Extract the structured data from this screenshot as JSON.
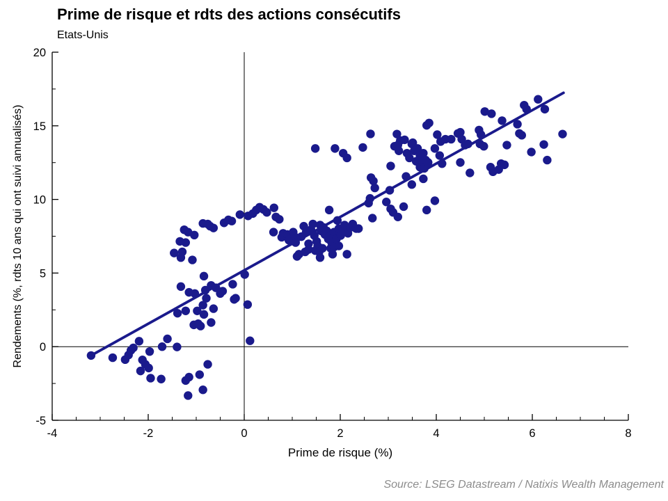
{
  "title": "Prime de risque et rdts des actions consécutifs",
  "subtitle": "Etats-Unis",
  "source": "Source: LSEG Datastream / Natixis Wealth Management",
  "colors": {
    "dot": "#1a1a8c",
    "trendline": "#1a1a8c",
    "axis": "#000000",
    "source_text": "#8c8c8c"
  },
  "chart_data": {
    "type": "scatter",
    "title": "Prime de risque et rdts des actions consécutifs",
    "subtitle": "Etats-Unis",
    "xlabel": "Prime de risque (%)",
    "ylabel": "Rendements (%, rdts 10 ans qui ont suivi annualisés)",
    "xlim": [
      -4,
      8
    ],
    "ylim": [
      -5,
      20
    ],
    "xticks": [
      -4,
      -2,
      0,
      2,
      4,
      6,
      8
    ],
    "yticks": [
      -5,
      0,
      5,
      10,
      15,
      20
    ],
    "x_minor_step": 0.5,
    "y_minor_step": 2.5,
    "grid": false,
    "zero_lines": true,
    "legend": "none",
    "trendline": {
      "x1": -3.19,
      "y1": -0.6,
      "x2": 6.65,
      "y2": 17.24
    },
    "points": [
      [
        -3.19,
        -0.6
      ],
      [
        -2.74,
        -0.75
      ],
      [
        -2.48,
        -0.88
      ],
      [
        -2.41,
        -0.57
      ],
      [
        -2.36,
        -0.25
      ],
      [
        -2.31,
        -0.08
      ],
      [
        -2.19,
        0.37
      ],
      [
        -2.12,
        -0.9
      ],
      [
        -2.06,
        -1.2
      ],
      [
        -2.16,
        -1.65
      ],
      [
        -1.99,
        -1.45
      ],
      [
        -1.97,
        -0.33
      ],
      [
        -1.95,
        -2.14
      ],
      [
        -1.73,
        -2.2
      ],
      [
        -1.71,
        0.0
      ],
      [
        -1.6,
        0.53
      ],
      [
        -1.4,
        -0.02
      ],
      [
        -1.22,
        -2.3
      ],
      [
        -1.15,
        -2.07
      ],
      [
        -0.93,
        -1.9
      ],
      [
        -0.76,
        -1.2
      ],
      [
        -0.86,
        -2.93
      ],
      [
        -1.17,
        -3.32
      ],
      [
        0.12,
        0.4
      ],
      [
        -1.39,
        2.27
      ],
      [
        -1.22,
        2.43
      ],
      [
        -0.98,
        2.43
      ],
      [
        -0.86,
        2.82
      ],
      [
        -0.84,
        2.19
      ],
      [
        -1.05,
        1.48
      ],
      [
        -0.96,
        1.56
      ],
      [
        -0.91,
        1.4
      ],
      [
        -0.69,
        1.64
      ],
      [
        -0.64,
        2.58
      ],
      [
        -1.32,
        4.08
      ],
      [
        -1.15,
        3.69
      ],
      [
        -1.03,
        3.61
      ],
      [
        -0.84,
        4.79
      ],
      [
        -0.81,
        3.84
      ],
      [
        -0.79,
        3.29
      ],
      [
        -0.69,
        4.16
      ],
      [
        -0.59,
        4.0
      ],
      [
        -0.5,
        3.61
      ],
      [
        -0.45,
        3.77
      ],
      [
        -0.24,
        4.24
      ],
      [
        -0.21,
        3.21
      ],
      [
        -0.18,
        3.29
      ],
      [
        0.01,
        4.9
      ],
      [
        0.07,
        2.86
      ],
      [
        -1.46,
        6.36
      ],
      [
        -1.32,
        6.05
      ],
      [
        -1.29,
        6.44
      ],
      [
        -1.08,
        5.89
      ],
      [
        -1.34,
        7.15
      ],
      [
        -1.22,
        7.07
      ],
      [
        -1.25,
        7.94
      ],
      [
        -1.17,
        7.78
      ],
      [
        -1.04,
        7.58
      ],
      [
        -0.86,
        8.37
      ],
      [
        -0.76,
        8.33
      ],
      [
        -0.71,
        8.18
      ],
      [
        -0.64,
        8.06
      ],
      [
        -0.42,
        8.41
      ],
      [
        -0.33,
        8.61
      ],
      [
        -0.26,
        8.53
      ],
      [
        -0.09,
        8.97
      ],
      [
        0.08,
        8.88
      ],
      [
        0.18,
        9.04
      ],
      [
        0.25,
        9.28
      ],
      [
        0.32,
        9.47
      ],
      [
        0.4,
        9.32
      ],
      [
        0.47,
        9.12
      ],
      [
        0.62,
        9.43
      ],
      [
        0.66,
        8.81
      ],
      [
        0.73,
        8.65
      ],
      [
        0.61,
        7.78
      ],
      [
        0.78,
        7.43
      ],
      [
        0.81,
        7.7
      ],
      [
        0.9,
        7.62
      ],
      [
        0.93,
        7.23
      ],
      [
        1.02,
        7.78
      ],
      [
        1.05,
        7.47
      ],
      [
        1.07,
        7.07
      ],
      [
        1.19,
        7.47
      ],
      [
        1.24,
        8.18
      ],
      [
        1.29,
        7.78
      ],
      [
        1.34,
        6.99
      ],
      [
        1.39,
        7.94
      ],
      [
        1.43,
        8.33
      ],
      [
        1.46,
        7.55
      ],
      [
        1.51,
        7.15
      ],
      [
        1.53,
        6.84
      ],
      [
        1.58,
        8.26
      ],
      [
        1.6,
        7.86
      ],
      [
        1.65,
        8.1
      ],
      [
        1.68,
        7.62
      ],
      [
        1.72,
        7.86
      ],
      [
        1.75,
        7.31
      ],
      [
        1.8,
        7.55
      ],
      [
        1.82,
        7.07
      ],
      [
        1.87,
        7.78
      ],
      [
        1.92,
        7.31
      ],
      [
        1.94,
        8.57
      ],
      [
        1.97,
        8.02
      ],
      [
        2.01,
        7.55
      ],
      [
        2.06,
        7.86
      ],
      [
        2.09,
        8.26
      ],
      [
        2.16,
        7.7
      ],
      [
        2.21,
        8.1
      ],
      [
        2.26,
        8.33
      ],
      [
        2.33,
        8.02
      ],
      [
        2.38,
        8.02
      ],
      [
        1.1,
        6.13
      ],
      [
        1.14,
        6.28
      ],
      [
        1.27,
        6.44
      ],
      [
        1.34,
        6.6
      ],
      [
        1.48,
        6.52
      ],
      [
        1.56,
        6.44
      ],
      [
        1.58,
        6.05
      ],
      [
        1.63,
        6.68
      ],
      [
        1.8,
        6.68
      ],
      [
        1.84,
        6.28
      ],
      [
        1.87,
        6.76
      ],
      [
        1.97,
        6.84
      ],
      [
        2.14,
        6.28
      ],
      [
        1.77,
        9.28
      ],
      [
        2.67,
        8.73
      ],
      [
        2.59,
        9.75
      ],
      [
        2.62,
        10.07
      ],
      [
        2.72,
        10.78
      ],
      [
        2.69,
        11.25
      ],
      [
        2.64,
        11.48
      ],
      [
        2.96,
        9.83
      ],
      [
        3.03,
        10.62
      ],
      [
        3.1,
        9.12
      ],
      [
        3.2,
        8.81
      ],
      [
        3.05,
        9.36
      ],
      [
        3.32,
        9.51
      ],
      [
        3.8,
        9.28
      ],
      [
        3.97,
        9.91
      ],
      [
        3.05,
        12.27
      ],
      [
        3.37,
        11.56
      ],
      [
        3.49,
        11.01
      ],
      [
        3.73,
        11.4
      ],
      [
        1.48,
        13.46
      ],
      [
        1.89,
        13.46
      ],
      [
        2.06,
        13.14
      ],
      [
        2.14,
        12.82
      ],
      [
        2.47,
        13.53
      ],
      [
        2.63,
        14.45
      ],
      [
        3.18,
        14.44
      ],
      [
        3.25,
        14.0
      ],
      [
        3.34,
        14.05
      ],
      [
        3.13,
        13.61
      ],
      [
        3.2,
        13.69
      ],
      [
        3.22,
        13.3
      ],
      [
        3.39,
        13.14
      ],
      [
        3.44,
        12.82
      ],
      [
        3.49,
        13.77
      ],
      [
        3.51,
        13.85
      ],
      [
        3.54,
        13.3
      ],
      [
        3.58,
        12.59
      ],
      [
        3.61,
        13.46
      ],
      [
        3.66,
        12.98
      ],
      [
        3.66,
        12.19
      ],
      [
        3.71,
        12.59
      ],
      [
        3.73,
        13.14
      ],
      [
        3.75,
        12.11
      ],
      [
        3.78,
        12.67
      ],
      [
        3.83,
        12.51
      ],
      [
        3.8,
        15.03
      ],
      [
        3.85,
        15.19
      ],
      [
        3.97,
        13.46
      ],
      [
        4.02,
        14.4
      ],
      [
        4.09,
        13.93
      ],
      [
        4.12,
        12.43
      ],
      [
        4.07,
        12.98
      ],
      [
        4.19,
        14.09
      ],
      [
        4.31,
        14.09
      ],
      [
        4.45,
        14.48
      ],
      [
        4.5,
        14.56
      ],
      [
        4.53,
        14.09
      ],
      [
        4.6,
        13.69
      ],
      [
        4.66,
        13.77
      ],
      [
        4.89,
        14.71
      ],
      [
        4.93,
        14.4
      ],
      [
        5.01,
        15.97
      ],
      [
        5.15,
        15.82
      ],
      [
        4.91,
        13.77
      ],
      [
        4.99,
        13.61
      ],
      [
        5.37,
        15.35
      ],
      [
        5.69,
        15.11
      ],
      [
        5.83,
        16.4
      ],
      [
        5.88,
        16.13
      ],
      [
        6.12,
        16.8
      ],
      [
        6.26,
        16.13
      ],
      [
        5.73,
        14.48
      ],
      [
        5.78,
        14.36
      ],
      [
        5.47,
        13.69
      ],
      [
        5.98,
        13.22
      ],
      [
        6.24,
        13.73
      ],
      [
        6.31,
        12.67
      ],
      [
        6.63,
        14.44
      ],
      [
        4.5,
        12.51
      ],
      [
        4.7,
        11.8
      ],
      [
        5.13,
        12.19
      ],
      [
        5.18,
        11.88
      ],
      [
        5.3,
        12.03
      ],
      [
        5.35,
        12.43
      ],
      [
        5.42,
        12.35
      ]
    ]
  }
}
